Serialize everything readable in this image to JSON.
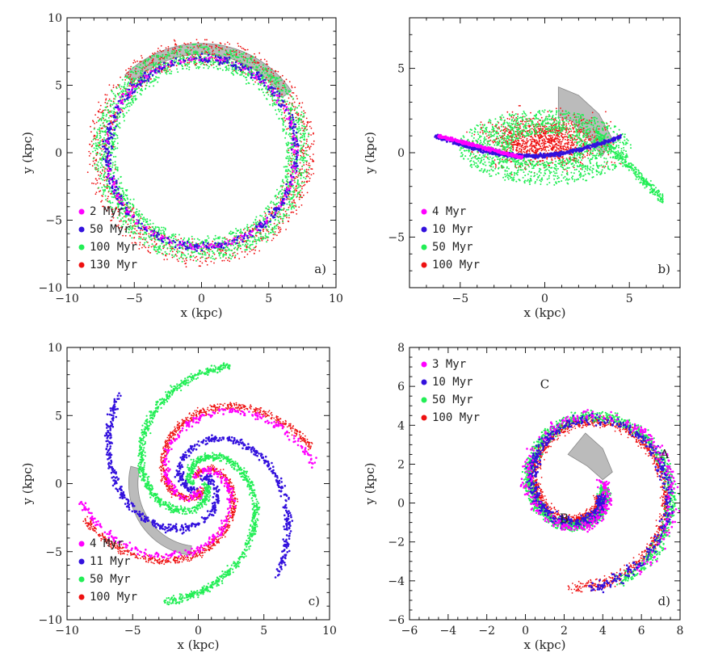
{
  "chart_data": [
    {
      "type": "scatter",
      "panel": "a)",
      "xlabel": "x (kpc)",
      "ylabel": "y (kpc)",
      "xlim": [
        -10,
        10
      ],
      "ylim": [
        -10,
        10
      ],
      "xticks": [
        -10,
        -5,
        0,
        5,
        10
      ],
      "yticks": [
        -10,
        -5,
        0,
        5,
        10
      ],
      "legend_position": "bottom-left",
      "series": [
        {
          "name": "2 Myr",
          "color": "#ff00ff"
        },
        {
          "name": "50 Myr",
          "color": "#3311dd"
        },
        {
          "name": "100 Myr",
          "color": "#22ee55"
        },
        {
          "name": "130 Myr",
          "color": "#ee1111"
        }
      ],
      "annotations": []
    },
    {
      "type": "scatter",
      "panel": "b)",
      "xlabel": "x (kpc)",
      "ylabel": "y (kpc)",
      "xlim": [
        -8,
        8
      ],
      "ylim": [
        -8,
        8
      ],
      "xticks": [
        -5,
        0,
        5
      ],
      "yticks": [
        -5,
        0,
        5
      ],
      "legend_position": "bottom-left",
      "series": [
        {
          "name": "4 Myr",
          "color": "#ff00ff"
        },
        {
          "name": "10 Myr",
          "color": "#3311dd"
        },
        {
          "name": "50 Myr",
          "color": "#22ee55"
        },
        {
          "name": "100 Myr",
          "color": "#ee1111"
        }
      ],
      "annotations": []
    },
    {
      "type": "scatter",
      "panel": "c)",
      "xlabel": "x (kpc)",
      "ylabel": "y (kpc)",
      "xlim": [
        -10,
        10
      ],
      "ylim": [
        -10,
        10
      ],
      "xticks": [
        -10,
        -5,
        0,
        5,
        10
      ],
      "yticks": [
        -10,
        -5,
        0,
        5,
        10
      ],
      "legend_position": "bottom-left",
      "series": [
        {
          "name": "4 Myr",
          "color": "#ff00ff"
        },
        {
          "name": "11 Myr",
          "color": "#3311dd"
        },
        {
          "name": "50 Myr",
          "color": "#22ee55"
        },
        {
          "name": "100 Myr",
          "color": "#ee1111"
        }
      ],
      "annotations": []
    },
    {
      "type": "scatter",
      "panel": "d)",
      "xlabel": "x (kpc)",
      "ylabel": "y (kpc)",
      "xlim": [
        -6,
        8
      ],
      "ylim": [
        -6,
        8
      ],
      "xticks": [
        -6,
        -4,
        -2,
        0,
        2,
        4,
        6,
        8
      ],
      "yticks": [
        -6,
        -4,
        -2,
        0,
        2,
        4,
        6,
        8
      ],
      "legend_position": "top-left",
      "series": [
        {
          "name": "3 Myr",
          "color": "#ff00ff"
        },
        {
          "name": "10 Myr",
          "color": "#3311dd"
        },
        {
          "name": "50 Myr",
          "color": "#22ee55"
        },
        {
          "name": "100 Myr",
          "color": "#ee1111"
        }
      ],
      "annotations": [
        {
          "text": "A",
          "x": 7.2,
          "y": 2.3
        },
        {
          "text": "B",
          "x": 2.0,
          "y": -1.0
        },
        {
          "text": "C",
          "x": 1.0,
          "y": 5.9
        }
      ]
    }
  ]
}
